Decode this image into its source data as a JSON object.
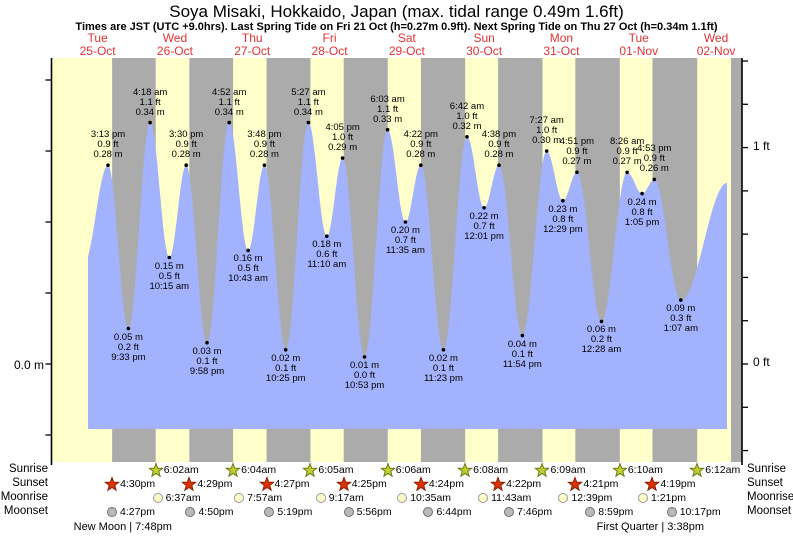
{
  "header": {
    "title": "Soya Misaki, Hokkaido, Japan (max. tidal range 0.49m 1.6ft)",
    "subtitle": "Times are JST (UTC +9.0hrs). Last Spring Tide on Fri 21 Oct (h=0.27m 0.9ft). Next Spring Tide on Thu 27 Oct (h=0.34m 1.1ft)"
  },
  "axes": {
    "left_label": "0.0 m",
    "right_top_label": "1 ft",
    "right_bottom_label": "0 ft"
  },
  "chart_data": {
    "type": "area",
    "title": "Soya Misaki, Hokkaido, Japan tide curve",
    "x_days": [
      {
        "weekday": "Tue",
        "date": "25-Oct"
      },
      {
        "weekday": "Wed",
        "date": "26-Oct"
      },
      {
        "weekday": "Thu",
        "date": "27-Oct"
      },
      {
        "weekday": "Fri",
        "date": "28-Oct"
      },
      {
        "weekday": "Sat",
        "date": "29-Oct"
      },
      {
        "weekday": "Sun",
        "date": "30-Oct"
      },
      {
        "weekday": "Mon",
        "date": "31-Oct"
      },
      {
        "weekday": "Tue",
        "date": "01-Nov"
      },
      {
        "weekday": "Wed",
        "date": "02-Nov"
      }
    ],
    "y_left_axis": {
      "unit": "m",
      "labeled_tick": "0.0 m",
      "tick_step_m": 0.1
    },
    "y_right_axis": {
      "unit": "ft",
      "labeled_ticks": [
        "1 ft",
        "0 ft"
      ],
      "tick_step_ft": 0.2
    },
    "tide_events": [
      {
        "day_index": 0,
        "time": "3:13 pm",
        "height_m": "0.28",
        "height_ft": "0.9",
        "kind": "high"
      },
      {
        "day_index": 0,
        "time": "9:33 pm",
        "height_m": "0.05",
        "height_ft": "0.2",
        "kind": "low"
      },
      {
        "day_index": 1,
        "time": "4:18 am",
        "height_m": "0.34",
        "height_ft": "1.1",
        "kind": "high"
      },
      {
        "day_index": 1,
        "time": "10:15 am",
        "height_m": "0.15",
        "height_ft": "0.5",
        "kind": "low"
      },
      {
        "day_index": 1,
        "time": "3:30 pm",
        "height_m": "0.28",
        "height_ft": "0.9",
        "kind": "high"
      },
      {
        "day_index": 1,
        "time": "9:58 pm",
        "height_m": "0.03",
        "height_ft": "0.1",
        "kind": "low"
      },
      {
        "day_index": 2,
        "time": "4:52 am",
        "height_m": "0.34",
        "height_ft": "1.1",
        "kind": "high"
      },
      {
        "day_index": 2,
        "time": "10:43 am",
        "height_m": "0.16",
        "height_ft": "0.5",
        "kind": "low"
      },
      {
        "day_index": 2,
        "time": "3:48 pm",
        "height_m": "0.28",
        "height_ft": "0.9",
        "kind": "high"
      },
      {
        "day_index": 2,
        "time": "10:25 pm",
        "height_m": "0.02",
        "height_ft": "0.1",
        "kind": "low"
      },
      {
        "day_index": 3,
        "time": "5:27 am",
        "height_m": "0.34",
        "height_ft": "1.1",
        "kind": "high"
      },
      {
        "day_index": 3,
        "time": "11:10 am",
        "height_m": "0.18",
        "height_ft": "0.6",
        "kind": "low"
      },
      {
        "day_index": 3,
        "time": "4:05 pm",
        "height_m": "0.29",
        "height_ft": "1.0",
        "kind": "high"
      },
      {
        "day_index": 3,
        "time": "10:53 pm",
        "height_m": "0.01",
        "height_ft": "0.0",
        "kind": "low"
      },
      {
        "day_index": 4,
        "time": "6:03 am",
        "height_m": "0.33",
        "height_ft": "1.1",
        "kind": "high"
      },
      {
        "day_index": 4,
        "time": "11:35 am",
        "height_m": "0.20",
        "height_ft": "0.7",
        "kind": "low"
      },
      {
        "day_index": 4,
        "time": "4:22 pm",
        "height_m": "0.28",
        "height_ft": "0.9",
        "kind": "high"
      },
      {
        "day_index": 4,
        "time": "11:23 pm",
        "height_m": "0.02",
        "height_ft": "0.1",
        "kind": "low"
      },
      {
        "day_index": 5,
        "time": "6:42 am",
        "height_m": "0.32",
        "height_ft": "1.0",
        "kind": "high"
      },
      {
        "day_index": 5,
        "time": "12:01 pm",
        "height_m": "0.22",
        "height_ft": "0.7",
        "kind": "low"
      },
      {
        "day_index": 5,
        "time": "4:38 pm",
        "height_m": "0.28",
        "height_ft": "0.9",
        "kind": "high"
      },
      {
        "day_index": 5,
        "time": "11:54 pm",
        "height_m": "0.04",
        "height_ft": "0.1",
        "kind": "low"
      },
      {
        "day_index": 6,
        "time": "7:27 am",
        "height_m": "0.30",
        "height_ft": "1.0",
        "kind": "high"
      },
      {
        "day_index": 6,
        "time": "12:29 pm",
        "height_m": "0.23",
        "height_ft": "0.8",
        "kind": "low"
      },
      {
        "day_index": 6,
        "time": "4:51 pm",
        "height_m": "0.27",
        "height_ft": "0.9",
        "kind": "high"
      },
      {
        "day_index": 7,
        "time": "12:28 am",
        "height_m": "0.06",
        "height_ft": "0.2",
        "kind": "low"
      },
      {
        "day_index": 7,
        "time": "8:26 am",
        "height_m": "0.27",
        "height_ft": "0.9",
        "kind": "high"
      },
      {
        "day_index": 7,
        "time": "1:05 pm",
        "height_m": "0.24",
        "height_ft": "0.8",
        "kind": "low"
      },
      {
        "day_index": 7,
        "time": "4:53 pm",
        "height_m": "0.26",
        "height_ft": "0.9",
        "kind": "high"
      },
      {
        "day_index": 8,
        "time": "1:07 am",
        "height_m": "0.09",
        "height_ft": "0.3",
        "kind": "low"
      }
    ],
    "colors": {
      "day_band": "#ffffcc",
      "night_band": "#ababab",
      "water": "#a3b2fc",
      "date_label": "#e03333",
      "sunrise_star": "#c2cc33",
      "sunrise_star_edge": "#6b7a10",
      "sunset_star": "#dd3300",
      "sunset_star_edge": "#8f1c00",
      "moonrise_circle": "#ffffcc",
      "moonrise_circle_edge": "#999999",
      "moonset_circle": "#b9b9b9",
      "moonset_circle_edge": "#6e6e6e"
    }
  },
  "almanac": {
    "rows": [
      {
        "id": "sunrise",
        "label": "Sunrise",
        "events": [
          {
            "day_index": 1,
            "time": "6:02am"
          },
          {
            "day_index": 2,
            "time": "6:04am"
          },
          {
            "day_index": 3,
            "time": "6:05am"
          },
          {
            "day_index": 4,
            "time": "6:06am"
          },
          {
            "day_index": 5,
            "time": "6:08am"
          },
          {
            "day_index": 6,
            "time": "6:09am"
          },
          {
            "day_index": 7,
            "time": "6:10am"
          },
          {
            "day_index": 8,
            "time": "6:12am"
          }
        ]
      },
      {
        "id": "sunset",
        "label": "Sunset",
        "events": [
          {
            "day_index": 0,
            "time": "4:30pm"
          },
          {
            "day_index": 1,
            "time": "4:29pm"
          },
          {
            "day_index": 2,
            "time": "4:27pm"
          },
          {
            "day_index": 3,
            "time": "4:25pm"
          },
          {
            "day_index": 4,
            "time": "4:24pm"
          },
          {
            "day_index": 5,
            "time": "4:22pm"
          },
          {
            "day_index": 6,
            "time": "4:21pm"
          },
          {
            "day_index": 7,
            "time": "4:19pm"
          }
        ]
      },
      {
        "id": "moonrise",
        "label": "Moonrise",
        "events": [
          {
            "day_index": 1,
            "time": "6:37am"
          },
          {
            "day_index": 2,
            "time": "7:57am"
          },
          {
            "day_index": 3,
            "time": "9:17am"
          },
          {
            "day_index": 4,
            "time": "10:35am"
          },
          {
            "day_index": 5,
            "time": "11:43am"
          },
          {
            "day_index": 6,
            "time": "12:39pm"
          },
          {
            "day_index": 7,
            "time": "1:21pm"
          }
        ]
      },
      {
        "id": "moonset",
        "label": "Moonset",
        "events": [
          {
            "day_index": 0,
            "time": "4:27pm"
          },
          {
            "day_index": 1,
            "time": "4:50pm"
          },
          {
            "day_index": 2,
            "time": "5:19pm"
          },
          {
            "day_index": 3,
            "time": "5:56pm"
          },
          {
            "day_index": 4,
            "time": "6:44pm"
          },
          {
            "day_index": 5,
            "time": "7:46pm"
          },
          {
            "day_index": 6,
            "time": "8:59pm"
          },
          {
            "day_index": 7,
            "time": "10:17pm"
          }
        ]
      }
    ],
    "phases": [
      {
        "name": "New Moon",
        "time": "7:48pm",
        "day_index": 0
      },
      {
        "name": "First Quarter",
        "time": "3:38pm",
        "day_index": 7
      }
    ]
  }
}
